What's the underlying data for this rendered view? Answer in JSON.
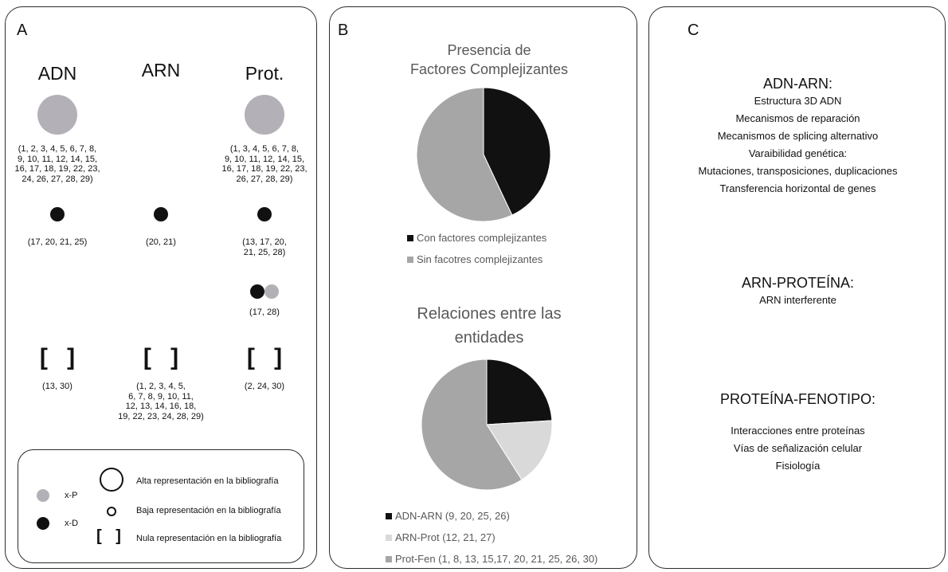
{
  "panelA": {
    "letter": "A",
    "columns": [
      {
        "header": "ADN",
        "big": "(1, 2, 3, 4, 5, 6, 7, 8,\n9, 10, 11, 12, 14, 15,\n16, 17, 18, 19, 22, 23,\n24, 26, 27, 28, 29)",
        "small": "(17, 20, 21, 25)",
        "none": "(13, 30)"
      },
      {
        "header": "ARN",
        "small": "(20, 21)",
        "none": "(1, 2, 3, 4, 5,\n6, 7, 8, 9, 10, 11,\n12, 13, 14, 16, 18,\n19, 22, 23, 24, 28, 29)"
      },
      {
        "header": "Prot.",
        "big": "(1, 3, 4, 5, 6, 7, 8,\n9, 10, 11, 12, 14, 15,\n16, 17, 18, 19, 22, 23,\n26, 27, 28, 29)",
        "small": "(13, 17, 20,\n21, 25, 28)",
        "pair": "(17, 28)",
        "none": "(2, 24, 30)"
      }
    ],
    "bracket_symbol": "[ ]",
    "legend": {
      "xp": "x-P",
      "xd": "x-D",
      "alta": "Alta representación en la bibliografía",
      "baja": "Baja representación en la bibliografía",
      "nula": "Nula representación en la bibliografía",
      "bracket": "[ ]"
    }
  },
  "panelB": {
    "letter": "B",
    "colors": {
      "black": "#111111",
      "grey": "#a6a6a6",
      "light": "#d9d9d9"
    }
  },
  "chart_data": [
    {
      "type": "pie",
      "title_line1": "Presencia de",
      "title_line2": "Factores Complejizantes",
      "categories": [
        "Con factores complejizantes",
        "Sin facotres complejizantes"
      ],
      "values": [
        43,
        57
      ]
    },
    {
      "type": "pie",
      "title_line1": "Relaciones entre las",
      "title_line2": "entidades",
      "categories": [
        "ADN-ARN (9, 20, 25, 26)",
        "ARN-Prot (12, 21, 27)",
        "Prot-Fen (1, 8, 13, 15,17, 20, 21, 25, 26, 30)"
      ],
      "values": [
        24,
        17,
        59
      ]
    }
  ],
  "panelC": {
    "letter": "C",
    "sections": [
      {
        "title": "ADN-ARN:",
        "items": [
          "Estructura 3D ADN",
          "Mecanismos de reparación",
          "Mecanismos de splicing alternativo",
          "Varaibilidad genética:",
          "Mutaciones, transposiciones, duplicaciones",
          "Transferencia horizontal de genes"
        ]
      },
      {
        "title": "ARN-PROTEÍNA:",
        "items": [
          "ARN interferente"
        ]
      },
      {
        "title": "PROTEÍNA-FENOTIPO:",
        "items": [
          "Interacciones entre proteínas",
          "Vías de señalización celular",
          "Fisiología"
        ]
      }
    ]
  }
}
